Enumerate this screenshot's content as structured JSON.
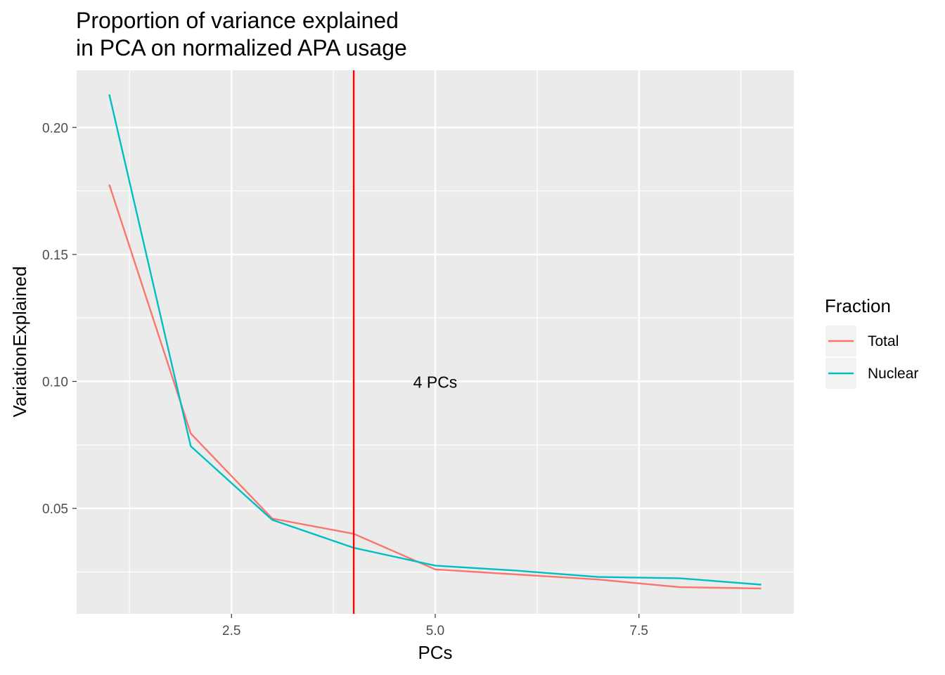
{
  "chart_data": {
    "type": "line",
    "title_lines": [
      "Proportion of variance explained",
      "in PCA on normalized APA usage"
    ],
    "xlabel": "PCs",
    "ylabel": "VariationExplained",
    "xlim": [
      0.6,
      9.4
    ],
    "ylim": [
      0.0085,
      0.2225
    ],
    "x_ticks": [
      2.5,
      5.0,
      7.5
    ],
    "x_tick_labels": [
      "2.5",
      "5.0",
      "7.5"
    ],
    "x_minor_ticks": [
      1.25,
      3.75,
      6.25,
      8.75
    ],
    "y_ticks": [
      0.05,
      0.1,
      0.15,
      0.2
    ],
    "y_tick_labels": [
      "0.05",
      "0.10",
      "0.15",
      "0.20"
    ],
    "y_minor_ticks": [
      0.025,
      0.075,
      0.125,
      0.175
    ],
    "grid": true,
    "x": [
      1,
      2,
      3,
      4,
      5,
      6,
      7,
      8,
      9
    ],
    "series": [
      {
        "name": "Total",
        "color": "#F8766D",
        "values": [
          0.1775,
          0.0795,
          0.046,
          0.04,
          0.026,
          0.024,
          0.022,
          0.019,
          0.0185
        ]
      },
      {
        "name": "Nuclear",
        "color": "#00BFC4",
        "values": [
          0.213,
          0.0745,
          0.0455,
          0.0345,
          0.0275,
          0.0255,
          0.023,
          0.0225,
          0.02
        ]
      }
    ],
    "vline": {
      "x": 4,
      "color": "#FF0000"
    },
    "annotation": {
      "text": "4 PCs",
      "x": 5,
      "y": 0.1
    },
    "legend": {
      "title": "Fraction",
      "position": "right"
    },
    "panel_background": "#EBEBEB",
    "grid_color": "#FFFFFF"
  }
}
